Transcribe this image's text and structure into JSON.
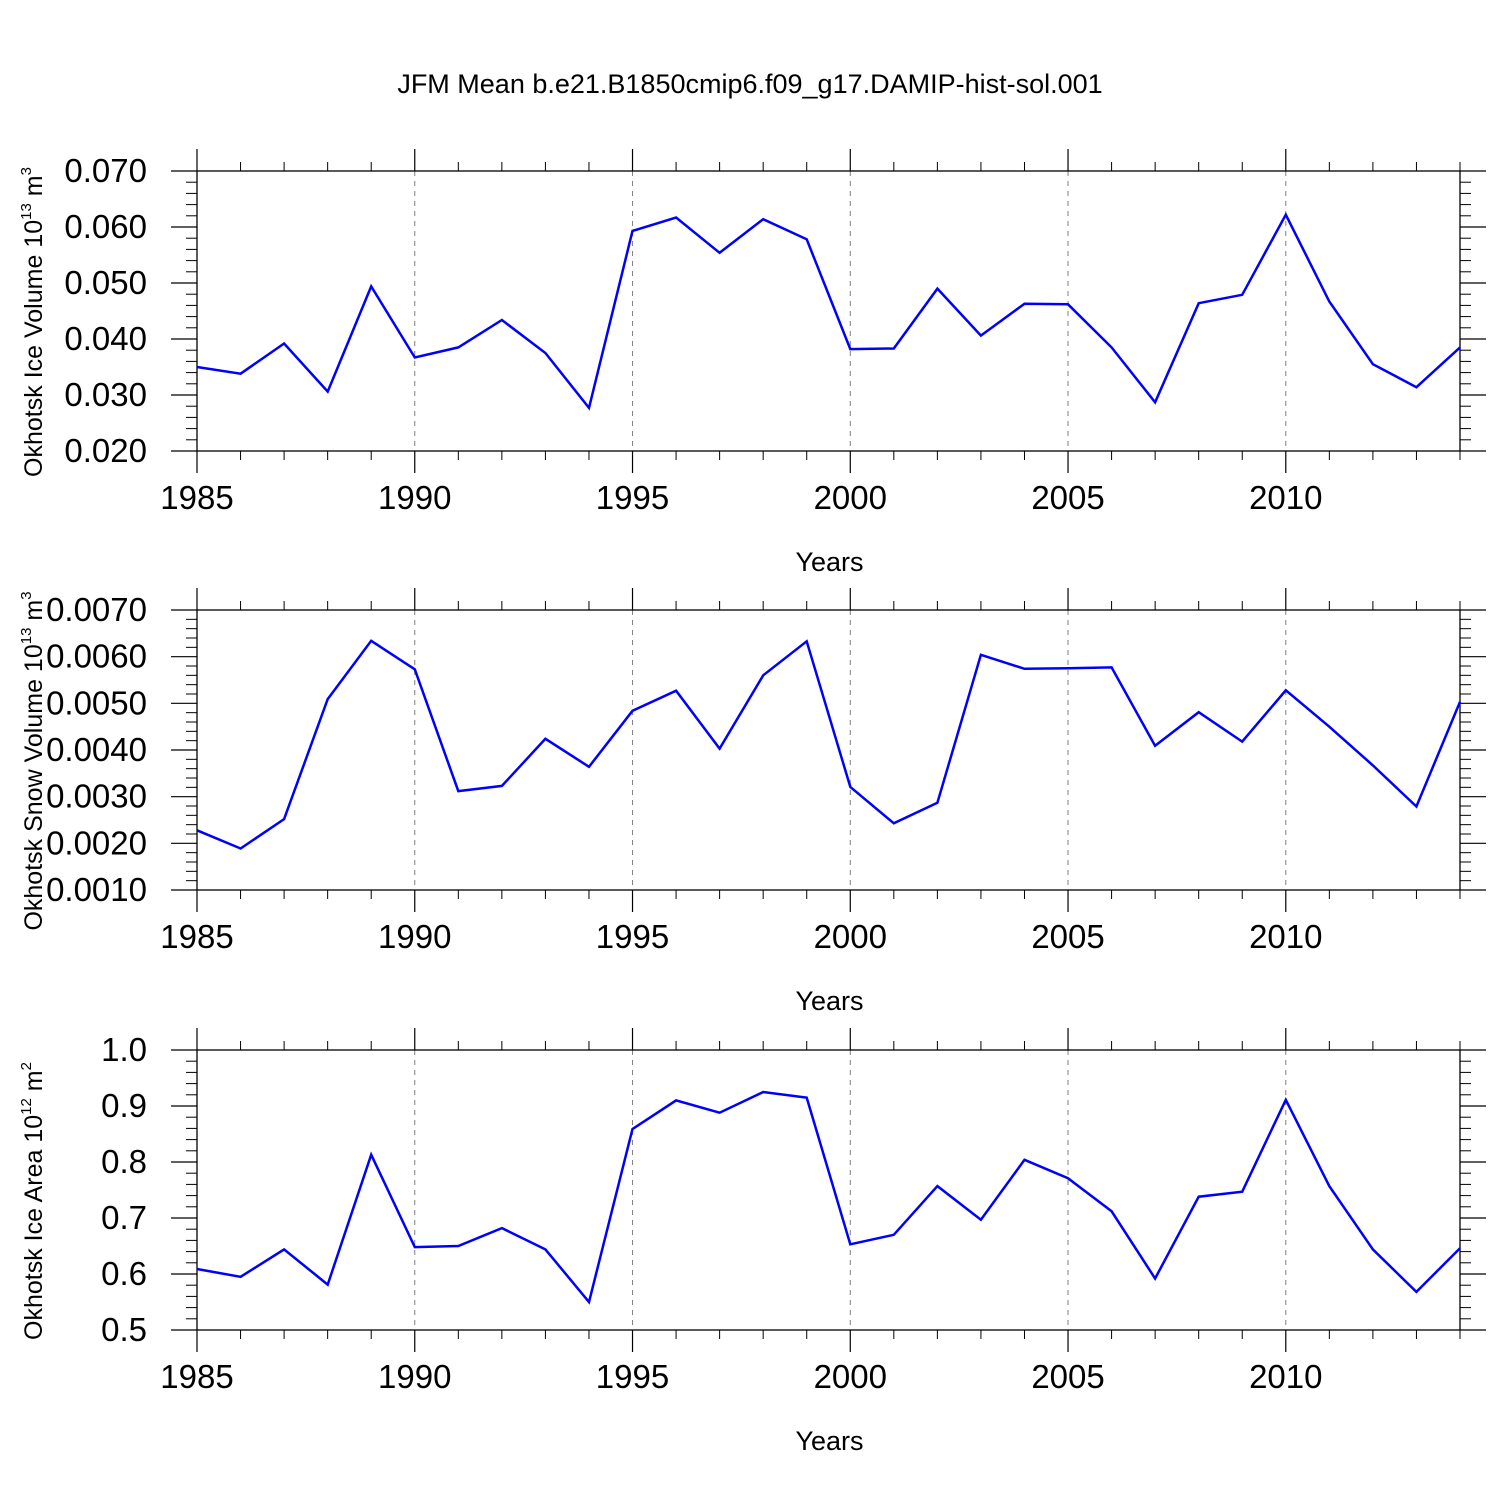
{
  "title": "JFM Mean b.e21.B1850cmip6.f09_g17.DAMIP-hist-sol.001",
  "colors": {
    "line": "#0000ff",
    "axis": "#000000",
    "grid": "#808080"
  },
  "chart_data": [
    {
      "type": "line",
      "xlabel": "Years",
      "ylabel": {
        "text": "Okhotsk Ice Volume 10",
        "exp": "13",
        "unit": " m",
        "unit_exp": "3"
      },
      "xlim": [
        1985,
        2014
      ],
      "ylim": [
        0.02,
        0.07
      ],
      "xticks": [
        1985,
        1990,
        1995,
        2000,
        2005,
        2010
      ],
      "xtick_labels": [
        "1985",
        "1990",
        "1995",
        "2000",
        "2005",
        "2010"
      ],
      "yticks": [
        0.02,
        0.03,
        0.04,
        0.05,
        0.06,
        0.07
      ],
      "ytick_labels": [
        "0.020",
        "0.030",
        "0.040",
        "0.050",
        "0.060",
        "0.070"
      ],
      "grid": "vertical dashed at major x ticks",
      "x": [
        1985,
        1986,
        1987,
        1988,
        1989,
        1990,
        1991,
        1992,
        1993,
        1994,
        1995,
        1996,
        1997,
        1998,
        1999,
        2000,
        2001,
        2002,
        2003,
        2004,
        2005,
        2006,
        2007,
        2008,
        2009,
        2010,
        2011,
        2012,
        2013,
        2014
      ],
      "values": [
        0.035,
        0.0338,
        0.0392,
        0.0306,
        0.0494,
        0.0367,
        0.0385,
        0.0434,
        0.0375,
        0.0277,
        0.0593,
        0.0617,
        0.0554,
        0.0614,
        0.0578,
        0.0382,
        0.0383,
        0.049,
        0.0406,
        0.0463,
        0.0462,
        0.0385,
        0.0287,
        0.0464,
        0.0479,
        0.0622,
        0.0467,
        0.0355,
        0.0314,
        0.0385
      ]
    },
    {
      "type": "line",
      "xlabel": "Years",
      "ylabel": {
        "text": "Okhotsk Snow Volume 10",
        "exp": "13",
        "unit": " m",
        "unit_exp": "3"
      },
      "xlim": [
        1985,
        2014
      ],
      "ylim": [
        0.001,
        0.007
      ],
      "xticks": [
        1985,
        1990,
        1995,
        2000,
        2005,
        2010
      ],
      "xtick_labels": [
        "1985",
        "1990",
        "1995",
        "2000",
        "2005",
        "2010"
      ],
      "yticks": [
        0.001,
        0.002,
        0.003,
        0.004,
        0.005,
        0.006,
        0.007
      ],
      "ytick_labels": [
        "0.0010",
        "0.0020",
        "0.0030",
        "0.0040",
        "0.0050",
        "0.0060",
        "0.0070"
      ],
      "grid": "vertical dashed at major x ticks",
      "x": [
        1985,
        1986,
        1987,
        1988,
        1989,
        1990,
        1991,
        1992,
        1993,
        1994,
        1995,
        1996,
        1997,
        1998,
        1999,
        2000,
        2001,
        2002,
        2003,
        2004,
        2005,
        2006,
        2007,
        2008,
        2009,
        2010,
        2011,
        2012,
        2013,
        2014
      ],
      "values": [
        0.00228,
        0.00189,
        0.00252,
        0.00509,
        0.00634,
        0.00573,
        0.00312,
        0.00323,
        0.00424,
        0.00364,
        0.00484,
        0.00527,
        0.00403,
        0.0056,
        0.00633,
        0.00321,
        0.00243,
        0.00287,
        0.00604,
        0.00574,
        0.00575,
        0.00577,
        0.00409,
        0.00481,
        0.00418,
        0.00528,
        0.0045,
        0.00367,
        0.00279,
        0.00503
      ]
    },
    {
      "type": "line",
      "xlabel": "Years",
      "ylabel": {
        "text": "Okhotsk Ice Area 10",
        "exp": "12",
        "unit": " m",
        "unit_exp": "2"
      },
      "xlim": [
        1985,
        2014
      ],
      "ylim": [
        0.5,
        1.0
      ],
      "xticks": [
        1985,
        1990,
        1995,
        2000,
        2005,
        2010
      ],
      "xtick_labels": [
        "1985",
        "1990",
        "1995",
        "2000",
        "2005",
        "2010"
      ],
      "yticks": [
        0.5,
        0.6,
        0.7,
        0.8,
        0.9,
        1.0
      ],
      "ytick_labels": [
        "0.5",
        "0.6",
        "0.7",
        "0.8",
        "0.9",
        "1.0"
      ],
      "grid": "vertical dashed at major x ticks",
      "x": [
        1985,
        1986,
        1987,
        1988,
        1989,
        1990,
        1991,
        1992,
        1993,
        1994,
        1995,
        1996,
        1997,
        1998,
        1999,
        2000,
        2001,
        2002,
        2003,
        2004,
        2005,
        2006,
        2007,
        2008,
        2009,
        2010,
        2011,
        2012,
        2013,
        2014
      ],
      "values": [
        0.609,
        0.595,
        0.644,
        0.581,
        0.813,
        0.648,
        0.65,
        0.682,
        0.644,
        0.55,
        0.859,
        0.91,
        0.888,
        0.925,
        0.915,
        0.653,
        0.67,
        0.757,
        0.697,
        0.804,
        0.771,
        0.712,
        0.592,
        0.738,
        0.747,
        0.911,
        0.757,
        0.644,
        0.568,
        0.646
      ]
    }
  ]
}
